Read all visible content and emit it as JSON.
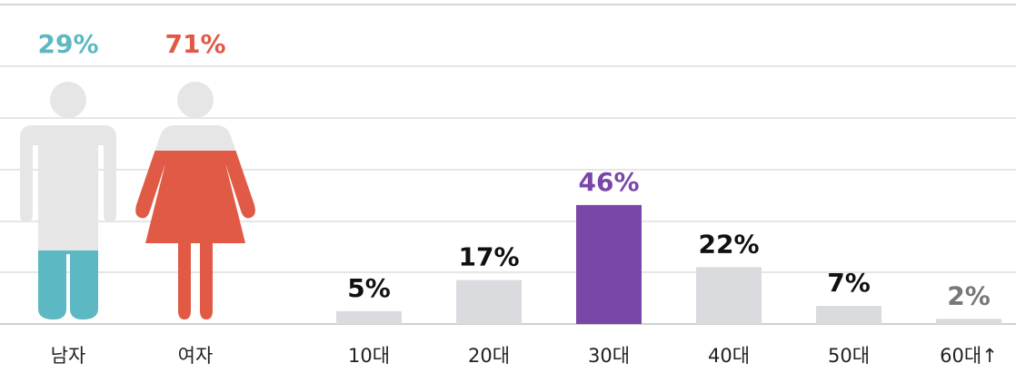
{
  "chart_data": [
    {
      "type": "pictogram",
      "categories": [
        "남자",
        "여자"
      ],
      "values": [
        29,
        71
      ],
      "value_labels": [
        "29%",
        "71%"
      ],
      "colors": [
        "#5cb8c2",
        "#e05a45"
      ],
      "base_color": "#e6e6e6"
    },
    {
      "type": "bar",
      "categories": [
        "10대",
        "20대",
        "30대",
        "40대",
        "50대",
        "60대↑"
      ],
      "values": [
        5,
        17,
        46,
        22,
        7,
        2
      ],
      "value_labels": [
        "5%",
        "17%",
        "46%",
        "22%",
        "7%",
        "2%"
      ],
      "colors": [
        "#d9dbde",
        "#d9dbde",
        "#7847a8",
        "#d9dbde",
        "#d9dbde",
        "#d9dbde"
      ],
      "label_colors": [
        "#111111",
        "#111111",
        "#7847a8",
        "#111111",
        "#111111",
        "#777777"
      ],
      "ylim": [
        0,
        100
      ]
    }
  ]
}
